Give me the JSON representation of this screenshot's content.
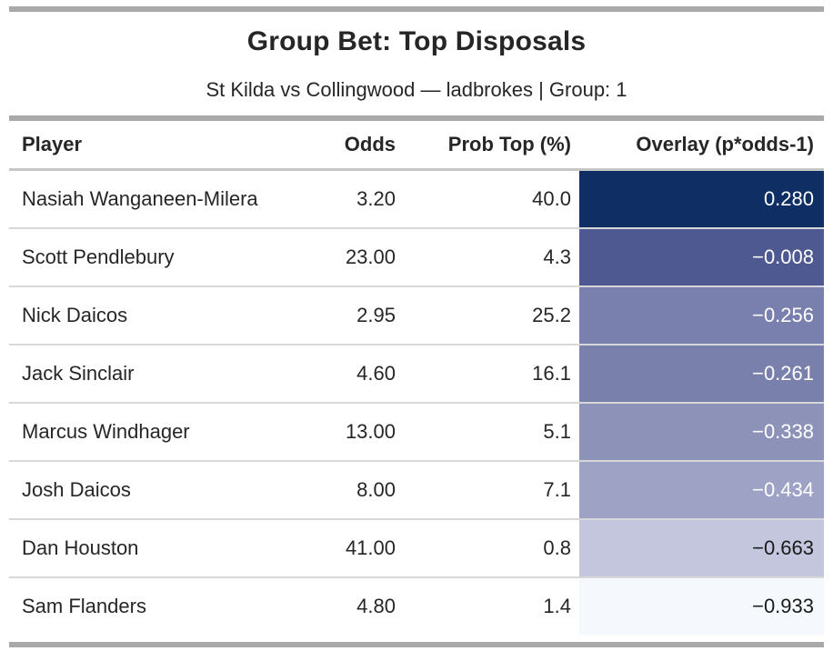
{
  "header": {
    "title": "Group Bet: Top Disposals",
    "subtitle": "St Kilda vs Collingwood — ladbrokes | Group: 1"
  },
  "table": {
    "columns": {
      "player": "Player",
      "odds": "Odds",
      "prob": "Prob Top (%)",
      "overlay": "Overlay (p*odds-1)"
    },
    "rows": [
      {
        "player": "Nasiah Wanganeen-Milera",
        "odds": "3.20",
        "prob": "40.0",
        "overlay": "0.280",
        "overlay_bg": "#0e2e64",
        "overlay_fg": "#ffffff"
      },
      {
        "player": "Scott Pendlebury",
        "odds": "23.00",
        "prob": "4.3",
        "overlay": "−0.008",
        "overlay_bg": "#4d5990",
        "overlay_fg": "#ffffff"
      },
      {
        "player": "Nick Daicos",
        "odds": "2.95",
        "prob": "25.2",
        "overlay": "−0.256",
        "overlay_bg": "#7a80ae",
        "overlay_fg": "#ffffff"
      },
      {
        "player": "Jack Sinclair",
        "odds": "4.60",
        "prob": "16.1",
        "overlay": "−0.261",
        "overlay_bg": "#7a80ac",
        "overlay_fg": "#ffffff"
      },
      {
        "player": "Marcus Windhager",
        "odds": "13.00",
        "prob": "5.1",
        "overlay": "−0.338",
        "overlay_bg": "#8d92b9",
        "overlay_fg": "#ffffff"
      },
      {
        "player": "Josh Daicos",
        "odds": "8.00",
        "prob": "7.1",
        "overlay": "−0.434",
        "overlay_bg": "#9ea3c5",
        "overlay_fg": "#ffffff"
      },
      {
        "player": "Dan Houston",
        "odds": "41.00",
        "prob": "0.8",
        "overlay": "−0.663",
        "overlay_bg": "#c3c6dc",
        "overlay_fg": "#1a1a1a"
      },
      {
        "player": "Sam Flanders",
        "odds": "4.80",
        "prob": "1.4",
        "overlay": "−0.933",
        "overlay_bg": "#f5f8fd",
        "overlay_fg": "#1a1a1a"
      }
    ]
  },
  "chart_data": {
    "type": "table",
    "title": "Group Bet: Top Disposals",
    "subtitle": "St Kilda vs Collingwood — ladbrokes | Group: 1",
    "columns": [
      "Player",
      "Odds",
      "Prob Top (%)",
      "Overlay (p*odds-1)"
    ],
    "rows": [
      [
        "Nasiah Wanganeen-Milera",
        3.2,
        40.0,
        0.28
      ],
      [
        "Scott Pendlebury",
        23.0,
        4.3,
        -0.008
      ],
      [
        "Nick Daicos",
        2.95,
        25.2,
        -0.256
      ],
      [
        "Jack Sinclair",
        4.6,
        16.1,
        -0.261
      ],
      [
        "Marcus Windhager",
        13.0,
        5.1,
        -0.338
      ],
      [
        "Josh Daicos",
        8.0,
        7.1,
        -0.434
      ],
      [
        "Dan Houston",
        41.0,
        0.8,
        -0.663
      ],
      [
        "Sam Flanders",
        4.8,
        1.4,
        -0.933
      ]
    ],
    "heatmap_column": "Overlay (p*odds-1)",
    "heatmap_range": [
      -0.933,
      0.28
    ],
    "heatmap_colors": {
      "max": "#0e2e64",
      "min": "#f5f8fd"
    }
  }
}
